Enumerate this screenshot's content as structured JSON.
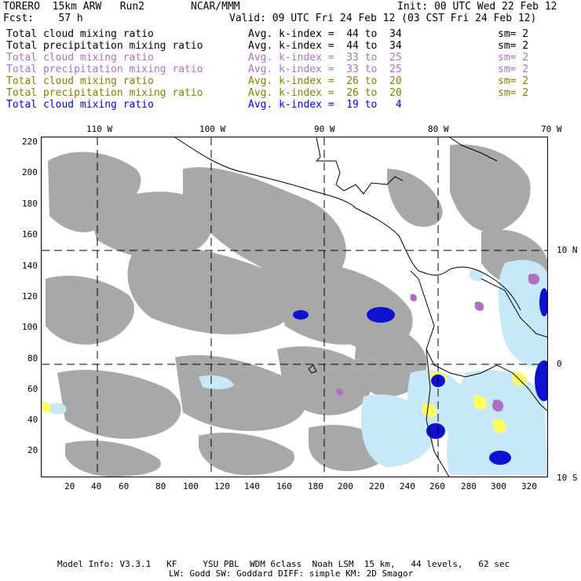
{
  "header": {
    "model": "TORERO  15km ARW   Run2",
    "org": "NCAR/MMM",
    "init": "Init: 00 UTC Wed 22 Feb 12",
    "fcst": "Fcst:    57 h",
    "valid": "Valid: 09 UTC Fri 24 Feb 12 (03 CST Fri 24 Feb 12)"
  },
  "legend_rows": [
    {
      "field": "Total cloud mixing ratio",
      "index": "Avg. k-index =  44 to  34",
      "sm": "sm= 2",
      "color": "#000000"
    },
    {
      "field": "Total precipitation mixing ratio",
      "index": "Avg. k-index =  44 to  34",
      "sm": "sm= 2",
      "color": "#000000"
    },
    {
      "field": "Total cloud mixing ratio",
      "index": "Avg. k-index =  33 to  25",
      "sm": "sm= 2",
      "color": "#b070c0"
    },
    {
      "field": "Total precipitation mixing ratio",
      "index": "Avg. k-index =  33 to  25",
      "sm": "sm= 2",
      "color": "#b070c0"
    },
    {
      "field": "Total cloud mixing ratio",
      "index": "Avg. k-index =  26 to  20",
      "sm": "sm= 2",
      "color": "#808000"
    },
    {
      "field": "Total precipitation mixing ratio",
      "index": "Avg. k-index =  26 to  20",
      "sm": "sm= 2",
      "color": "#808000"
    },
    {
      "field": "Total cloud mixing ratio",
      "index": "Avg. k-index =  19 to   4",
      "sm": "",
      "color": "#0000ff"
    }
  ],
  "lon_labels": [
    "110 W",
    "100 W",
    "90 W",
    "80 W",
    "70 W"
  ],
  "lat_labels": [
    "10 N",
    "0",
    "10 S"
  ],
  "x_ticks": [
    "20",
    "40",
    "60",
    "80",
    "100",
    "120",
    "140",
    "160",
    "180",
    "200",
    "220",
    "240",
    "260",
    "280",
    "300",
    "320"
  ],
  "y_ticks": [
    "20",
    "40",
    "60",
    "80",
    "100",
    "120",
    "140",
    "160",
    "180",
    "200",
    "220"
  ],
  "colors": {
    "cloud_gray": "#a8a8a8",
    "purple": "#b070c0",
    "yellow": "#ffff60",
    "light_blue": "#c8e8f8",
    "blue": "#1010d0"
  },
  "footer": {
    "line1": "Model Info: V3.3.1   KF     YSU PBL  WDM 6class  Noah LSM  15 km,   44 levels,   62 sec",
    "line2": "LW: Godd SW: Goddard DIFF: simple KM: 2D Smagor"
  }
}
